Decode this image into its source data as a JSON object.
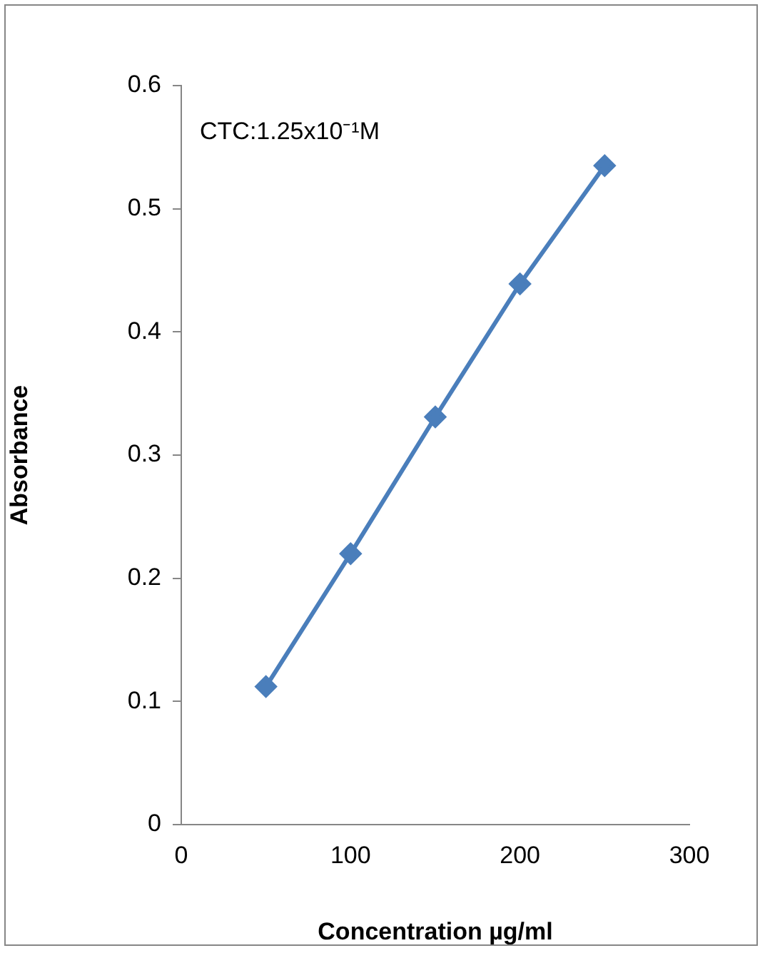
{
  "chart_data": {
    "type": "line",
    "xlabel": "Concentration µg/ml",
    "ylabel": "Absorbance",
    "annotations": [
      "CTC:1.25x10⁻¹M"
    ],
    "x": [
      50,
      100,
      150,
      200,
      250
    ],
    "series": [
      {
        "color": "#4a7ebb",
        "values": [
          0.112,
          0.22,
          0.331,
          0.439,
          0.535
        ]
      }
    ],
    "xlim": [
      0,
      300
    ],
    "xticks": [
      0,
      100,
      200,
      300
    ],
    "ylim": [
      0,
      0.6
    ],
    "yticks": [
      0,
      0.1,
      0.2,
      0.3,
      0.4,
      0.5,
      0.6
    ],
    "marker": "diamond"
  }
}
